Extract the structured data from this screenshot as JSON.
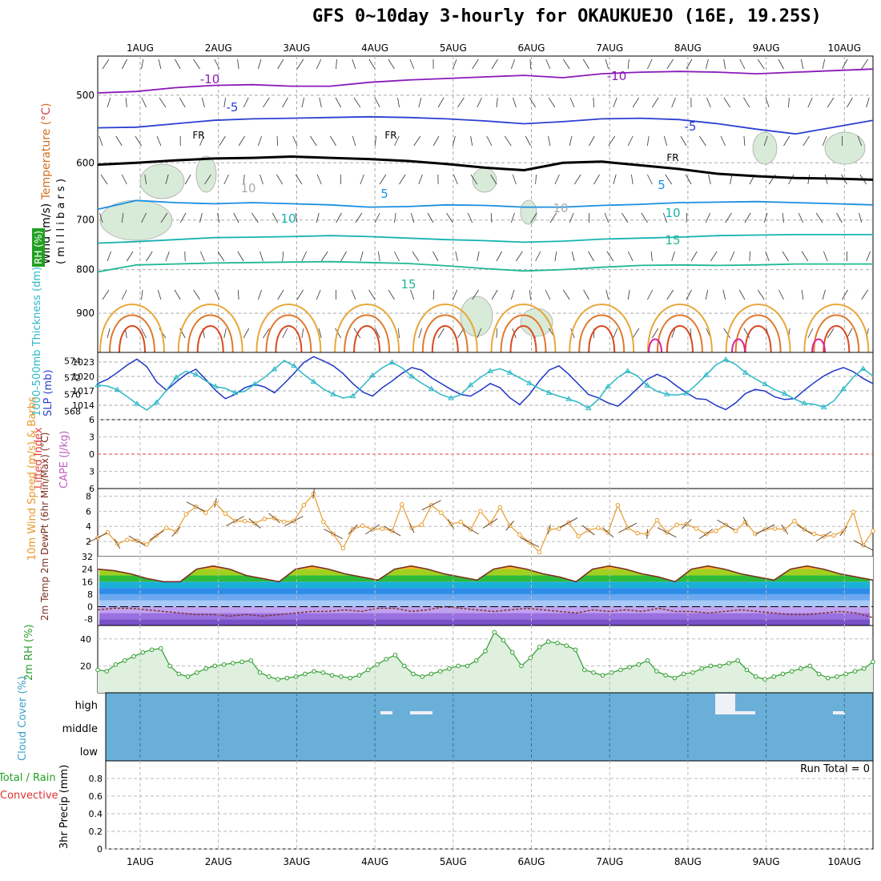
{
  "chart_data": [
    {
      "type": "line",
      "panel": "upper-air",
      "title": "GFS 0~10day 3-hourly for OKAUKUEJO (16E, 19.25S)",
      "x_dates": [
        "1AUG",
        "2AUG",
        "3AUG",
        "4AUG",
        "5AUG",
        "6AUG",
        "7AUG",
        "8AUG",
        "9AUG",
        "10AUG"
      ],
      "ylabel_parts": [
        "Wind (m/s)",
        "Temperature (°C)",
        "RH (%)"
      ],
      "ylabel_millibars": "( m i l l i b a r s )",
      "y_ticks": [
        500,
        600,
        700,
        800,
        900
      ],
      "ylim": [
        1000,
        450
      ],
      "scale": "log-pressure",
      "isotherms": [
        {
          "temp": "-10",
          "color": "#8a1ab8",
          "pressure": [
            497,
            495,
            490,
            487,
            486,
            488,
            488,
            483,
            480,
            478,
            476,
            474,
            477,
            472,
            470,
            469,
            470,
            472,
            470,
            468,
            466
          ]
        },
        {
          "temp": "-5",
          "color": "#2b3fd1",
          "pressure": [
            546,
            545,
            540,
            535,
            533,
            532,
            531,
            530,
            531,
            533,
            536,
            540,
            537,
            533,
            532,
            534,
            540,
            548,
            555,
            545,
            535
          ]
        },
        {
          "temp": "FR",
          "color": "#000000",
          "pressure": [
            603,
            600,
            596,
            593,
            592,
            590,
            592,
            594,
            597,
            602,
            608,
            612,
            600,
            598,
            604,
            610,
            618,
            622,
            625,
            626,
            628
          ]
        },
        {
          "temp": "5",
          "color": "#1a8fe0",
          "pressure": [
            680,
            664,
            668,
            670,
            668,
            670,
            672,
            676,
            675,
            672,
            673,
            676,
            676,
            673,
            671,
            668,
            667,
            666,
            668,
            670,
            672
          ]
        },
        {
          "temp": "10",
          "color": "#17b3b0",
          "pressure": [
            745,
            742,
            738,
            734,
            733,
            732,
            730,
            732,
            735,
            738,
            740,
            743,
            741,
            737,
            735,
            733,
            730,
            729,
            728,
            728,
            728
          ]
        },
        {
          "temp": "15",
          "color": "#1fb892",
          "pressure": [
            805,
            790,
            788,
            786,
            785,
            784,
            783,
            785,
            787,
            792,
            798,
            803,
            800,
            795,
            791,
            790,
            791,
            790,
            788,
            788,
            788
          ]
        }
      ],
      "labels": [
        {
          "text": "-10",
          "color": "#8a1ab8"
        },
        {
          "text": "-10",
          "color": "#8a1ab8"
        },
        {
          "text": "-5",
          "color": "#2b3fd1"
        },
        {
          "text": "-5",
          "color": "#2b3fd1"
        },
        {
          "text": "FR",
          "color": "#000000"
        },
        {
          "text": "FR",
          "color": "#000000"
        },
        {
          "text": "FR",
          "color": "#000000"
        },
        {
          "text": "5",
          "color": "#1a8fe0"
        },
        {
          "text": "5",
          "color": "#1a8fe0"
        },
        {
          "text": "10",
          "color": "#17b3b0"
        },
        {
          "text": "10",
          "color": "#17b3b0"
        },
        {
          "text": "15",
          "color": "#1fb892"
        },
        {
          "text": "15",
          "color": "#1fb892"
        },
        {
          "text": "10",
          "color": "#aaaaaa"
        },
        {
          "text": "10",
          "color": "#aaaaaa"
        }
      ]
    },
    {
      "type": "line",
      "panel": "thickness-slp",
      "ylabel_left": "1000-500mb Thickness (dm)",
      "ylabel_right": "SLP (mb)",
      "left_ticks": [
        568,
        570,
        572,
        574
      ],
      "right_ticks": [
        1014,
        1017,
        1020,
        1023
      ],
      "series": [
        {
          "name": "Thickness",
          "color": "#1f36c8",
          "values": [
            571.3,
            571.8,
            572.6,
            573.5,
            574.2,
            573.3,
            571.5,
            570.5,
            571.5,
            572.4,
            573.0,
            571.8,
            570.5,
            569.5,
            570.0,
            570.8,
            571.2,
            570.9,
            570.2,
            571.3,
            572.5,
            573.8,
            574.5,
            574.0,
            573.4,
            572.5,
            571.3,
            570.3,
            569.8,
            570.8,
            571.6,
            572.5,
            573.2,
            572.9,
            572.0,
            571.3,
            570.6,
            570.0,
            569.8,
            570.5,
            571.3,
            570.8,
            569.6,
            568.8,
            570.0,
            571.6,
            572.9,
            573.4,
            572.4,
            571.2,
            570.0,
            569.6,
            569.0,
            568.6,
            569.6,
            570.7,
            571.8,
            572.4,
            571.9,
            571.0,
            570.2,
            569.5,
            569.4,
            568.7,
            568.2,
            569.0,
            570.1,
            570.6,
            570.4,
            569.7,
            569.4,
            569.5,
            570.5,
            571.4,
            572.2,
            572.8,
            573.2,
            572.7,
            571.9,
            571.3
          ]
        },
        {
          "name": "SLP",
          "color": "#2ab8c6",
          "values": [
            1018.2,
            1018.0,
            1017.2,
            1015.8,
            1014.3,
            1013.0,
            1014.6,
            1017.1,
            1019.8,
            1021.1,
            1020.4,
            1019.1,
            1017.9,
            1017.5,
            1016.6,
            1016.9,
            1018.4,
            1019.8,
            1021.5,
            1023.3,
            1022.2,
            1020.4,
            1018.9,
            1017.4,
            1016.3,
            1015.5,
            1015.9,
            1018.0,
            1020.2,
            1021.8,
            1022.9,
            1021.8,
            1020.0,
            1018.6,
            1017.4,
            1016.2,
            1015.5,
            1016.2,
            1018.2,
            1019.8,
            1021.1,
            1021.6,
            1020.8,
            1019.7,
            1018.6,
            1017.5,
            1016.6,
            1015.9,
            1015.3,
            1014.6,
            1013.4,
            1015.2,
            1017.9,
            1019.8,
            1021.1,
            1020.1,
            1018.1,
            1016.9,
            1016.3,
            1016.1,
            1016.5,
            1018.3,
            1020.3,
            1022.4,
            1023.5,
            1022.5,
            1020.8,
            1019.5,
            1018.4,
            1017.2,
            1016.4,
            1015.3,
            1014.4,
            1014.2,
            1013.6,
            1014.9,
            1017.4,
            1019.9,
            1021.6,
            1020.1
          ]
        }
      ]
    },
    {
      "type": "line",
      "panel": "instability",
      "ylabel_left": "Lifted Index",
      "ylabel_right": "CAPE (J/kg)",
      "left_ticks": [
        -6,
        -3,
        0,
        3,
        6
      ],
      "series": [
        {
          "name": "Lifted Index",
          "values": []
        }
      ]
    },
    {
      "type": "line",
      "panel": "10m-wind",
      "ylabel": "10m Wind Speed (m/s) & Barbs",
      "y_ticks": [
        2,
        4,
        6,
        8
      ],
      "ylim": [
        0,
        9
      ],
      "series": [
        {
          "name": "Wind Speed",
          "color": "#e89a2c",
          "values": [
            2.5,
            3.2,
            1.7,
            2.2,
            2.1,
            1.6,
            2.8,
            3.8,
            3.3,
            5.6,
            6.6,
            5.8,
            7.1,
            5.7,
            4.7,
            4.7,
            4.4,
            5.0,
            5.1,
            4.6,
            4.7,
            6.8,
            8.3,
            4.6,
            3.0,
            1.1,
            3.6,
            4.1,
            3.6,
            3.7,
            3.4,
            6.9,
            3.8,
            4.2,
            6.8,
            5.8,
            4.3,
            4.6,
            3.6,
            6.0,
            4.4,
            6.5,
            4.1,
            2.9,
            1.9,
            0.6,
            3.6,
            3.7,
            4.5,
            2.7,
            3.5,
            3.8,
            3.2,
            6.8,
            3.8,
            3.1,
            3.0,
            4.8,
            3.2,
            4.2,
            4.3,
            3.7,
            3.0,
            3.4,
            4.2,
            3.4,
            4.6,
            3.0,
            3.6,
            3.7,
            3.6,
            4.7,
            3.6,
            3.0,
            2.7,
            2.8,
            3.4,
            5.9,
            1.5,
            3.4
          ]
        }
      ]
    },
    {
      "type": "area",
      "panel": "2m-temperature",
      "ylabel": "2m Temp 2m DewPt (6hr Min/Max) (°C)",
      "y_ticks": [
        -8,
        0,
        8,
        16,
        24,
        32
      ],
      "series": [
        {
          "name": "2m Temp",
          "values": [
            24,
            23,
            21,
            18,
            16,
            16,
            24,
            26,
            24,
            20,
            18,
            16,
            24,
            26,
            24,
            21,
            19,
            17,
            24,
            26,
            24,
            21,
            19,
            17,
            24,
            26,
            24,
            21,
            19,
            16,
            24,
            26,
            24,
            21,
            19,
            16,
            24,
            26,
            24,
            21,
            19,
            17,
            24,
            26,
            24,
            21,
            19,
            17
          ]
        },
        {
          "name": "2m DewPt",
          "values": [
            -2,
            -1,
            -1,
            -2,
            -3,
            -4,
            -5,
            -5,
            -6,
            -5,
            -6,
            -5,
            -4,
            -3,
            -3,
            -2,
            -3,
            -1,
            -1,
            -3,
            -2,
            0,
            -1,
            -2,
            -3,
            -2,
            -1,
            -2,
            -3,
            -4,
            -2,
            -3,
            -2,
            -3,
            -1,
            -3,
            -3,
            -4,
            -3,
            -2,
            -3,
            -4,
            -5,
            -5,
            -4,
            -3,
            -4,
            -7
          ]
        }
      ]
    },
    {
      "type": "area",
      "panel": "2m-rh",
      "ylabel": "2m RH (%)",
      "y_ticks": [
        20,
        40
      ],
      "ylim": [
        0,
        50
      ],
      "series": [
        {
          "name": "2m RH",
          "color": "#2f9e2f",
          "values": [
            17,
            16,
            21,
            24,
            27,
            30,
            32,
            33,
            20,
            14,
            12,
            15,
            18,
            20,
            21,
            22,
            23,
            24,
            15,
            12,
            10,
            11,
            12,
            14,
            16,
            15,
            13,
            12,
            11,
            13,
            17,
            21,
            25,
            28,
            20,
            14,
            12,
            14,
            16,
            18,
            20,
            20,
            24,
            31,
            45,
            39,
            30,
            20,
            26,
            34,
            38,
            37,
            35,
            32,
            17,
            15,
            13,
            15,
            17,
            19,
            21,
            24,
            16,
            13,
            11,
            14,
            15,
            18,
            20,
            20,
            22,
            24,
            17,
            12,
            10,
            12,
            14,
            16,
            18,
            20,
            14,
            11,
            12,
            14,
            16,
            18,
            23
          ]
        }
      ]
    },
    {
      "type": "area",
      "panel": "cloud-cover",
      "ylabel": "Cloud Cover (%)",
      "levels": [
        "high",
        "middle",
        "low"
      ]
    },
    {
      "type": "bar",
      "panel": "precip",
      "ylabel_left_1": "Total / Rain",
      "ylabel_left_2": "Convective",
      "ylabel": "3hr Precip (mm)",
      "y_ticks": [
        "0",
        "0.2",
        "0.4",
        "0.6",
        "0.8"
      ],
      "ylim": [
        0,
        1
      ],
      "run_total": "Run Total = 0",
      "values": []
    }
  ]
}
